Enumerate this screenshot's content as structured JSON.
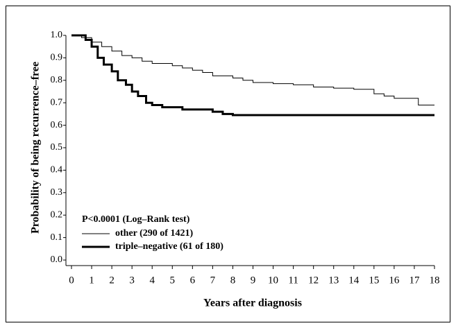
{
  "chart_data": {
    "type": "step",
    "y_label": "Probability of being recurrence–free",
    "x_label": "Years after diagnosis",
    "annotation": "P<0.0001 (Log–Rank test)",
    "xlim": [
      0,
      18
    ],
    "ylim": [
      0,
      1
    ],
    "xticks": [
      0,
      1,
      2,
      3,
      4,
      5,
      6,
      7,
      8,
      9,
      10,
      11,
      12,
      13,
      14,
      15,
      16,
      17,
      18
    ],
    "yticks": [
      {
        "value": 0,
        "label": "0.0"
      },
      0.1,
      0.2,
      0.3,
      0.4,
      0.5,
      0.6,
      0.7,
      0.8,
      0.9,
      {
        "value": 1,
        "label": "1.0"
      }
    ],
    "series": [
      {
        "name": "other (290 of 1421)",
        "color": "#000000",
        "width": 1,
        "x": [
          0,
          0.5,
          1,
          1.5,
          2,
          2.5,
          3,
          3.5,
          4,
          5,
          5.5,
          6,
          6.5,
          7,
          8,
          8.5,
          9,
          10,
          11,
          12,
          13,
          14,
          15,
          15.5,
          16,
          17.2,
          18
        ],
        "values": [
          1.0,
          0.99,
          0.97,
          0.95,
          0.93,
          0.91,
          0.9,
          0.885,
          0.875,
          0.865,
          0.855,
          0.845,
          0.835,
          0.82,
          0.81,
          0.8,
          0.79,
          0.785,
          0.78,
          0.77,
          0.765,
          0.76,
          0.74,
          0.73,
          0.72,
          0.69,
          0.69
        ]
      },
      {
        "name": "triple–negative (61 of 180)",
        "color": "#000000",
        "width": 3,
        "x": [
          0,
          0.7,
          1,
          1.3,
          1.6,
          2,
          2.3,
          2.7,
          3,
          3.3,
          3.7,
          4,
          4.5,
          5.5,
          7,
          7.5,
          8,
          18
        ],
        "values": [
          1.0,
          0.98,
          0.95,
          0.9,
          0.87,
          0.84,
          0.8,
          0.78,
          0.75,
          0.73,
          0.7,
          0.69,
          0.68,
          0.67,
          0.66,
          0.65,
          0.645,
          0.645
        ]
      }
    ]
  }
}
